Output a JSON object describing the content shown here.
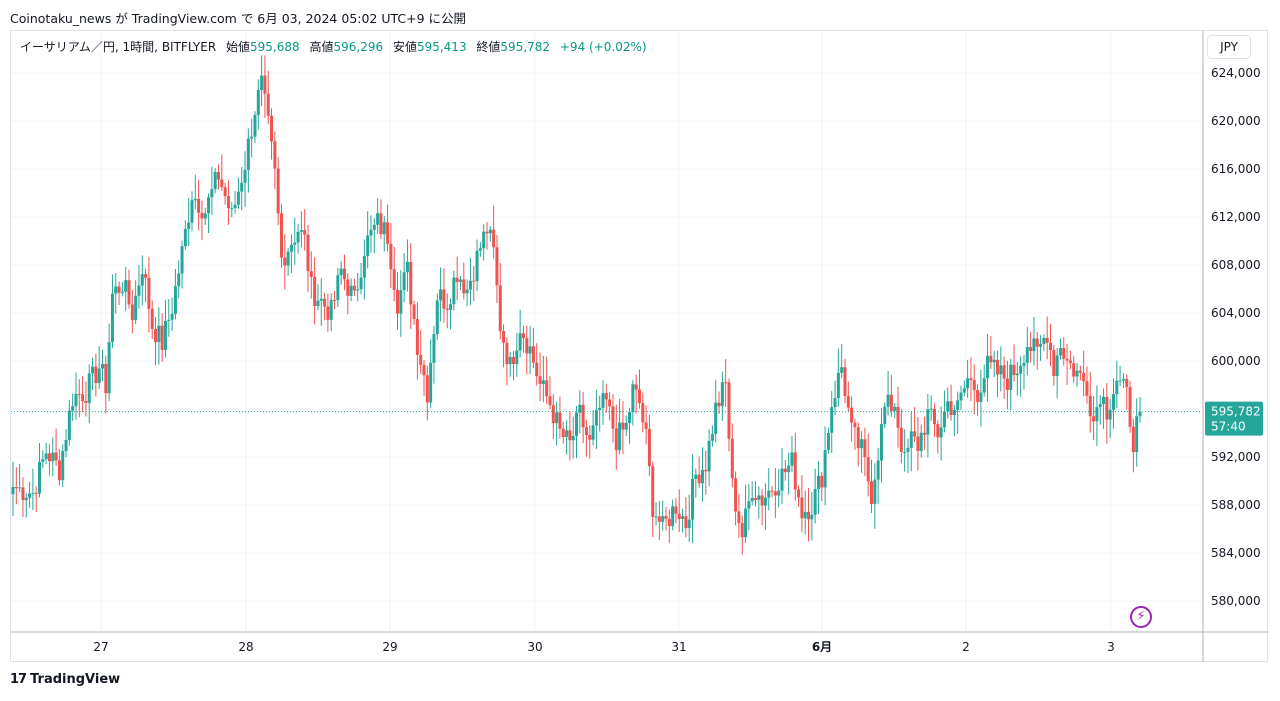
{
  "caption": "Coinotaku_news が TradingView.com で 6月 03, 2024 05:02 UTC+9 に公開",
  "legend": {
    "symbol": "イーサリアム／円, 1時間, BITFLYER",
    "open_label": "始値",
    "open": "595,688",
    "high_label": "高値",
    "high": "596,296",
    "low_label": "安値",
    "low": "595,413",
    "close_label": "終値",
    "close": "595,782",
    "change": "+94 (+0.02%)"
  },
  "currency": "JPY",
  "last_price": {
    "price": "595,782",
    "countdown": "57:40"
  },
  "footer": {
    "mark": "17",
    "brand": "TradingView"
  },
  "icons": {
    "lightning": "lightning-icon"
  },
  "colors": {
    "up": "#26a69a",
    "down": "#ef5350",
    "price_label": "#26a69a",
    "last_line": "#26a69a"
  },
  "chart_data": {
    "type": "candlestick",
    "x_tick_labels": [
      "27",
      "28",
      "29",
      "30",
      "31",
      "6月",
      "2",
      "3"
    ],
    "y_tick_labels": [
      "580,000",
      "584,000",
      "588,000",
      "592,000",
      "596,000",
      "600,000",
      "604,000",
      "608,000",
      "612,000",
      "616,000",
      "620,000",
      "624,000"
    ],
    "ylim": [
      577500,
      627500
    ],
    "grid": true,
    "last_value": 595782,
    "anchors": [
      [
        0,
        589500
      ],
      [
        6,
        589000
      ],
      [
        10,
        592500
      ],
      [
        14,
        591000
      ],
      [
        18,
        597000
      ],
      [
        22,
        597500
      ],
      [
        26,
        599500
      ],
      [
        28,
        598000
      ],
      [
        30,
        605500
      ],
      [
        33,
        606500
      ],
      [
        36,
        604000
      ],
      [
        39,
        608000
      ],
      [
        42,
        603000
      ],
      [
        45,
        601500
      ],
      [
        48,
        604500
      ],
      [
        51,
        609000
      ],
      [
        54,
        614000
      ],
      [
        58,
        612500
      ],
      [
        62,
        615500
      ],
      [
        66,
        612000
      ],
      [
        70,
        616500
      ],
      [
        73,
        621000
      ],
      [
        75,
        623000
      ],
      [
        77,
        619500
      ],
      [
        79,
        615500
      ],
      [
        81,
        608500
      ],
      [
        83,
        609500
      ],
      [
        86,
        611000
      ],
      [
        88,
        610000
      ],
      [
        90,
        606000
      ],
      [
        93,
        605000
      ],
      [
        96,
        604000
      ],
      [
        99,
        607500
      ],
      [
        103,
        605000
      ],
      [
        106,
        609500
      ],
      [
        110,
        611500
      ],
      [
        113,
        610500
      ],
      [
        116,
        605000
      ],
      [
        119,
        607500
      ],
      [
        122,
        601500
      ],
      [
        125,
        597500
      ],
      [
        128,
        605500
      ],
      [
        131,
        605000
      ],
      [
        134,
        607500
      ],
      [
        137,
        606000
      ],
      [
        141,
        609500
      ],
      [
        143,
        611000
      ],
      [
        145,
        609000
      ],
      [
        147,
        603000
      ],
      [
        150,
        599500
      ],
      [
        153,
        603000
      ],
      [
        156,
        601000
      ],
      [
        159,
        598000
      ],
      [
        162,
        596500
      ],
      [
        165,
        594000
      ],
      [
        168,
        593000
      ],
      [
        171,
        595500
      ],
      [
        174,
        593000
      ],
      [
        177,
        596000
      ],
      [
        179,
        596500
      ],
      [
        182,
        593500
      ],
      [
        185,
        594500
      ],
      [
        187,
        597500
      ],
      [
        189,
        596500
      ],
      [
        191,
        593500
      ],
      [
        193,
        588000
      ],
      [
        196,
        586000
      ],
      [
        200,
        588000
      ],
      [
        203,
        586500
      ],
      [
        206,
        590500
      ],
      [
        209,
        591500
      ],
      [
        212,
        596000
      ],
      [
        215,
        598000
      ],
      [
        217,
        589500
      ],
      [
        220,
        585500
      ],
      [
        223,
        589500
      ],
      [
        226,
        588500
      ],
      [
        229,
        589500
      ],
      [
        232,
        590500
      ],
      [
        235,
        591500
      ],
      [
        238,
        587500
      ],
      [
        241,
        588000
      ],
      [
        244,
        590500
      ],
      [
        247,
        596500
      ],
      [
        250,
        599500
      ],
      [
        253,
        594000
      ],
      [
        256,
        592500
      ],
      [
        259,
        589000
      ],
      [
        261,
        592500
      ],
      [
        263,
        596000
      ],
      [
        266,
        596500
      ],
      [
        269,
        591500
      ],
      [
        271,
        593500
      ],
      [
        273,
        593000
      ],
      [
        276,
        595500
      ],
      [
        279,
        594000
      ],
      [
        282,
        596500
      ],
      [
        285,
        596000
      ],
      [
        288,
        598500
      ],
      [
        291,
        597500
      ],
      [
        294,
        599500
      ],
      [
        297,
        599000
      ],
      [
        300,
        598500
      ],
      [
        303,
        599500
      ],
      [
        306,
        601500
      ],
      [
        309,
        600500
      ],
      [
        312,
        602500
      ],
      [
        314,
        599500
      ],
      [
        316,
        601500
      ],
      [
        318,
        600000
      ],
      [
        321,
        599000
      ],
      [
        324,
        598000
      ],
      [
        326,
        595000
      ],
      [
        328,
        597500
      ],
      [
        330,
        596000
      ],
      [
        333,
        598500
      ],
      [
        336,
        597000
      ],
      [
        338,
        593500
      ],
      [
        340,
        595782
      ]
    ]
  }
}
